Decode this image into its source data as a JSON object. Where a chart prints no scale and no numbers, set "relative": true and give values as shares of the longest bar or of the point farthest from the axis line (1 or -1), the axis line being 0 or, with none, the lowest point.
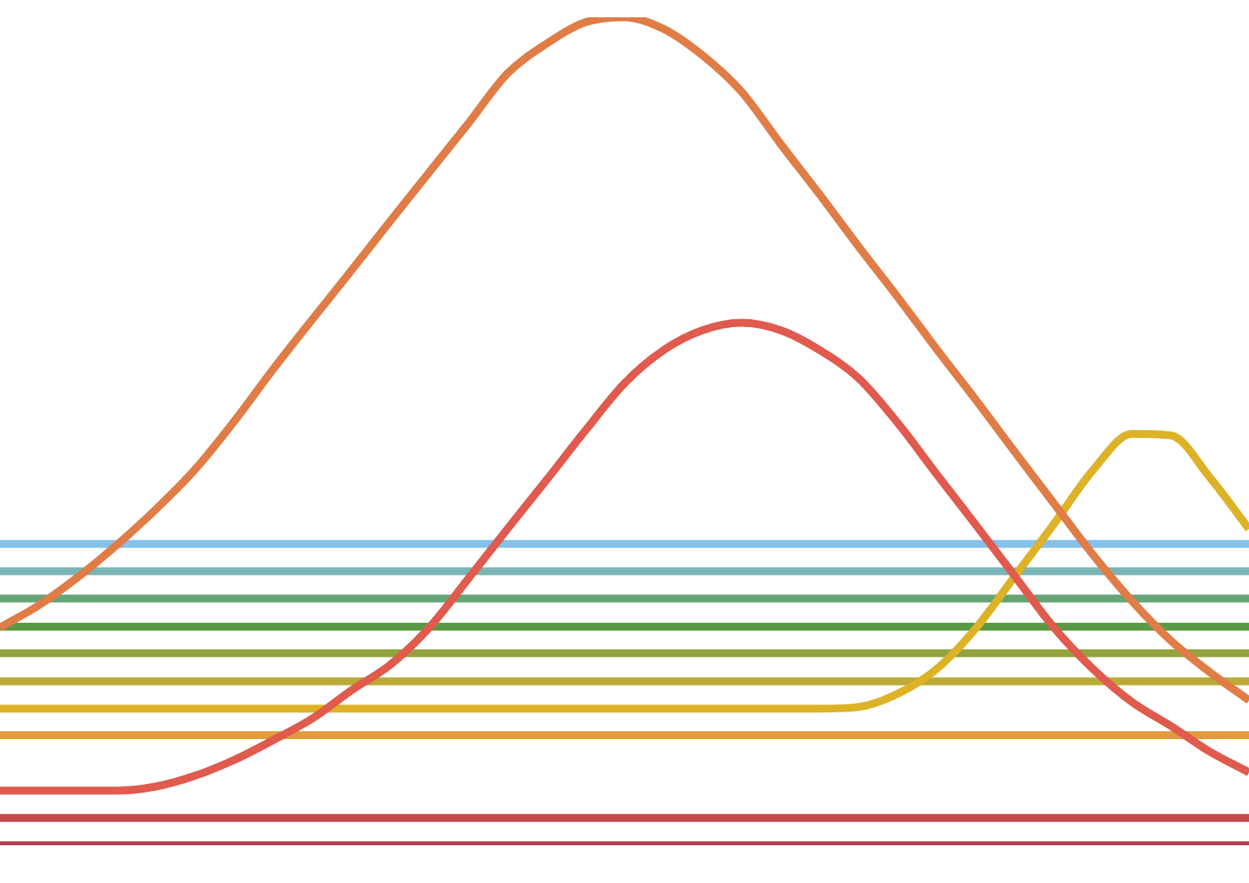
{
  "chart_data": {
    "type": "line",
    "relative": true,
    "marker": "none",
    "line_style": "solid",
    "categories": [
      null,
      null,
      null,
      null,
      null,
      null,
      null,
      null,
      null,
      null,
      null,
      null,
      null,
      null,
      null,
      null,
      null,
      null,
      null,
      null,
      null,
      null,
      null,
      null,
      null,
      null,
      null,
      null,
      null,
      null,
      null,
      null,
      null
    ],
    "series": [
      {
        "color": "#85c1e9",
        "values": [
          0.364,
          0.364,
          0.364,
          0.364,
          0.364,
          0.364,
          0.364,
          0.364,
          0.364,
          0.364,
          0.364,
          0.364,
          0.364,
          0.364,
          0.364,
          0.364,
          0.364,
          0.364,
          0.364,
          0.364,
          0.364,
          0.364,
          0.364,
          0.364,
          0.364,
          0.364,
          0.364,
          0.364,
          0.364,
          0.364,
          0.364,
          0.364,
          0.364
        ]
      },
      {
        "color": "#7ab5b5",
        "values": [
          0.331,
          0.331,
          0.331,
          0.331,
          0.331,
          0.331,
          0.331,
          0.331,
          0.331,
          0.331,
          0.331,
          0.331,
          0.331,
          0.331,
          0.331,
          0.331,
          0.331,
          0.331,
          0.331,
          0.331,
          0.331,
          0.331,
          0.331,
          0.331,
          0.331,
          0.331,
          0.331,
          0.331,
          0.331,
          0.331,
          0.331,
          0.331,
          0.331
        ]
      },
      {
        "color": "#67a477",
        "values": [
          0.298,
          0.298,
          0.298,
          0.298,
          0.298,
          0.298,
          0.298,
          0.298,
          0.298,
          0.298,
          0.298,
          0.298,
          0.298,
          0.298,
          0.298,
          0.298,
          0.298,
          0.298,
          0.298,
          0.298,
          0.298,
          0.298,
          0.298,
          0.298,
          0.298,
          0.298,
          0.298,
          0.298,
          0.298,
          0.298,
          0.298,
          0.298,
          0.298
        ]
      },
      {
        "color": "#5a9a45",
        "values": [
          0.264,
          0.264,
          0.264,
          0.264,
          0.264,
          0.264,
          0.264,
          0.264,
          0.264,
          0.264,
          0.264,
          0.264,
          0.264,
          0.264,
          0.264,
          0.264,
          0.264,
          0.264,
          0.264,
          0.264,
          0.264,
          0.264,
          0.264,
          0.264,
          0.264,
          0.264,
          0.264,
          0.264,
          0.264,
          0.264,
          0.264,
          0.264,
          0.264
        ]
      },
      {
        "color": "#93a33c",
        "values": [
          0.232,
          0.232,
          0.232,
          0.232,
          0.232,
          0.232,
          0.232,
          0.232,
          0.232,
          0.232,
          0.232,
          0.232,
          0.232,
          0.232,
          0.232,
          0.232,
          0.232,
          0.232,
          0.232,
          0.232,
          0.232,
          0.232,
          0.232,
          0.232,
          0.232,
          0.232,
          0.232,
          0.232,
          0.232,
          0.232,
          0.232,
          0.232,
          0.232
        ]
      },
      {
        "color": "#b9ab35",
        "values": [
          0.198,
          0.198,
          0.198,
          0.198,
          0.198,
          0.198,
          0.198,
          0.198,
          0.198,
          0.198,
          0.198,
          0.198,
          0.198,
          0.198,
          0.198,
          0.198,
          0.198,
          0.198,
          0.198,
          0.198,
          0.198,
          0.198,
          0.198,
          0.198,
          0.198,
          0.198,
          0.198,
          0.198,
          0.198,
          0.198,
          0.198,
          0.198,
          0.198
        ]
      },
      {
        "color": "#e09c3c",
        "values": [
          0.133,
          0.133,
          0.133,
          0.133,
          0.133,
          0.133,
          0.133,
          0.133,
          0.133,
          0.133,
          0.133,
          0.133,
          0.133,
          0.133,
          0.133,
          0.133,
          0.133,
          0.133,
          0.133,
          0.133,
          0.133,
          0.133,
          0.133,
          0.133,
          0.133,
          0.133,
          0.133,
          0.133,
          0.133,
          0.133,
          0.133,
          0.133,
          0.133
        ]
      },
      {
        "color": "#c64a4b",
        "values": [
          0.033,
          0.033,
          0.033,
          0.033,
          0.033,
          0.033,
          0.033,
          0.033,
          0.033,
          0.033,
          0.033,
          0.033,
          0.033,
          0.033,
          0.033,
          0.033,
          0.033,
          0.033,
          0.033,
          0.033,
          0.033,
          0.033,
          0.033,
          0.033,
          0.033,
          0.033,
          0.033,
          0.033,
          0.033,
          0.033,
          0.033,
          0.033,
          0.033
        ]
      },
      {
        "color": "#b53c52",
        "values": [
          0,
          0,
          0,
          0,
          0,
          0,
          0,
          0,
          0,
          0,
          0,
          0,
          0,
          0,
          0,
          0,
          0,
          0,
          0,
          0,
          0,
          0,
          0,
          0,
          0,
          0,
          0,
          0,
          0,
          0,
          0,
          0,
          0
        ]
      },
      {
        "color": "#ddb226",
        "values": [
          0.165,
          0.165,
          0.165,
          0.165,
          0.165,
          0.165,
          0.165,
          0.165,
          0.165,
          0.165,
          0.165,
          0.165,
          0.165,
          0.165,
          0.165,
          0.165,
          0.165,
          0.165,
          0.165,
          0.165,
          0.165,
          0.165,
          0.167,
          0.183,
          0.213,
          0.262,
          0.325,
          0.388,
          0.453,
          0.497,
          0.495,
          0.444,
          0.382
        ]
      },
      {
        "color": "#e05a4d",
        "values": [
          0.066,
          0.066,
          0.066,
          0.066,
          0.071,
          0.084,
          0.103,
          0.127,
          0.153,
          0.187,
          0.218,
          0.263,
          0.322,
          0.382,
          0.441,
          0.501,
          0.558,
          0.598,
          0.622,
          0.631,
          0.622,
          0.598,
          0.564,
          0.51,
          0.448,
          0.387,
          0.325,
          0.263,
          0.213,
          0.173,
          0.144,
          0.113,
          0.088
        ]
      },
      {
        "color": "#e07c46",
        "values": [
          0.263,
          0.29,
          0.324,
          0.363,
          0.406,
          0.454,
          0.512,
          0.575,
          0.635,
          0.694,
          0.754,
          0.813,
          0.872,
          0.932,
          0.968,
          0.994,
          1,
          0.986,
          0.954,
          0.91,
          0.847,
          0.786,
          0.723,
          0.662,
          0.599,
          0.538,
          0.475,
          0.413,
          0.351,
          0.295,
          0.247,
          0.209,
          0.175
        ]
      }
    ]
  }
}
